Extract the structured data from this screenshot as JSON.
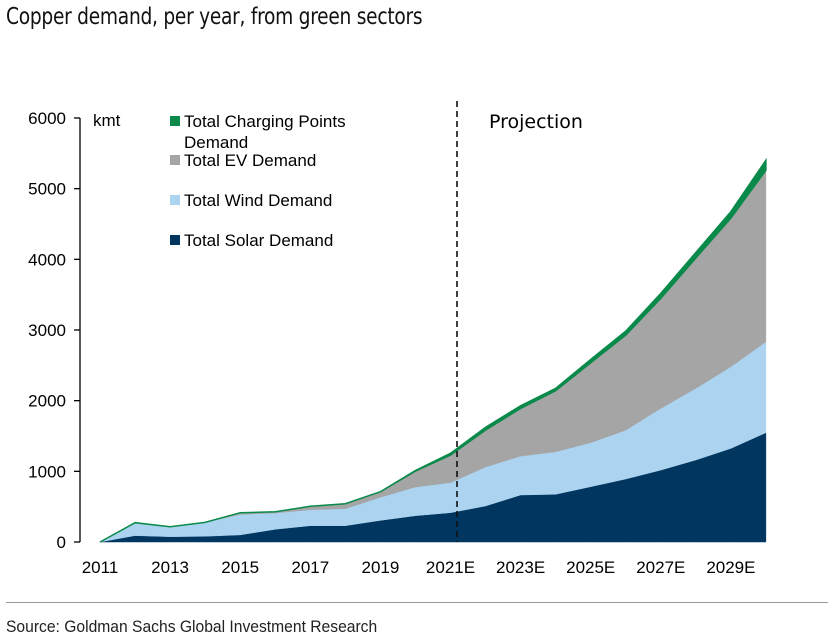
{
  "chart_data": {
    "type": "area",
    "stacked": true,
    "title": "Copper demand, per year, from green sectors",
    "unit_label": "kmt",
    "annotation": "Projection",
    "projection_start": "2021E",
    "categories": [
      "2011",
      "2012",
      "2013",
      "2014",
      "2015",
      "2016",
      "2017",
      "2018",
      "2019",
      "2020",
      "2021E",
      "2022E",
      "2023E",
      "2024E",
      "2025E",
      "2026E",
      "2027E",
      "2028E",
      "2029E",
      "2030E"
    ],
    "x_tick_labels": [
      "2011",
      "2013",
      "2015",
      "2017",
      "2019",
      "2021E",
      "2023E",
      "2025E",
      "2027E",
      "2029E"
    ],
    "y_tick_labels": [
      "0",
      "1000",
      "2000",
      "3000",
      "4000",
      "5000",
      "6000"
    ],
    "ylim": [
      0,
      6000
    ],
    "grid": false,
    "legend_position": "top-left",
    "series": [
      {
        "name": "Total Solar Demand",
        "color": "#003660",
        "values": [
          0,
          90,
          75,
          80,
          100,
          180,
          230,
          230,
          305,
          372,
          415,
          509,
          665,
          675,
          783,
          891,
          1018,
          1160,
          1325,
          1546
        ]
      },
      {
        "name": "Total Wind Demand",
        "color": "#acd3ef",
        "values": [
          0,
          183,
          142,
          198,
          291,
          230,
          227,
          241,
          327,
          406,
          425,
          552,
          551,
          602,
          622,
          693,
          873,
          1014,
          1155,
          1287
        ]
      },
      {
        "name": "Total EV Demand",
        "color": "#a5a5a5",
        "values": [
          0,
          0,
          0,
          0,
          24,
          18,
          48,
          71,
          80,
          226,
          390,
          523,
          675,
          863,
          1131,
          1344,
          1556,
          1843,
          2103,
          2429
        ]
      },
      {
        "name": "Total Charging Points Demand",
        "color": "#0a8a4a",
        "values": [
          0,
          0,
          0,
          0,
          0,
          0,
          0,
          0,
          0,
          8,
          25,
          38,
          37,
          34,
          47,
          56,
          71,
          80,
          93,
          141
        ]
      }
    ]
  },
  "source": "Source: Goldman Sachs Global Investment Research"
}
